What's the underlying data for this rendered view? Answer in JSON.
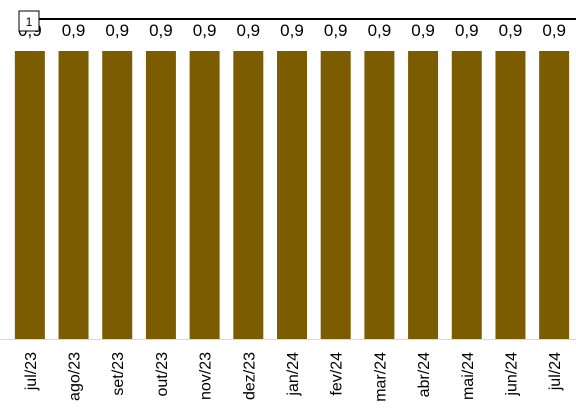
{
  "chart_data": {
    "type": "bar",
    "categories": [
      "jul/23",
      "ago/23",
      "set/23",
      "out/23",
      "nov/23",
      "dez/23",
      "jan/24",
      "fev/24",
      "mar/24",
      "abr/24",
      "mai/24",
      "jun/24",
      "jul/24"
    ],
    "values": [
      0.9,
      0.9,
      0.9,
      0.9,
      0.9,
      0.9,
      0.9,
      0.9,
      0.9,
      0.9,
      0.9,
      0.9,
      0.9
    ],
    "data_labels": [
      "0,9",
      "0,9",
      "0,9",
      "0,9",
      "0,9",
      "0,9",
      "0,9",
      "0,9",
      "0,9",
      "0,9",
      "0,9",
      "0,9",
      "0,9"
    ],
    "reference_line": {
      "value": 1,
      "label": "1"
    },
    "title": "",
    "xlabel": "",
    "ylabel": "",
    "ylim": [
      0,
      1
    ],
    "grid": false,
    "colors": {
      "bar": "#7B5C00",
      "reference_line": "#000000",
      "baseline": "#D9D9D9"
    }
  }
}
